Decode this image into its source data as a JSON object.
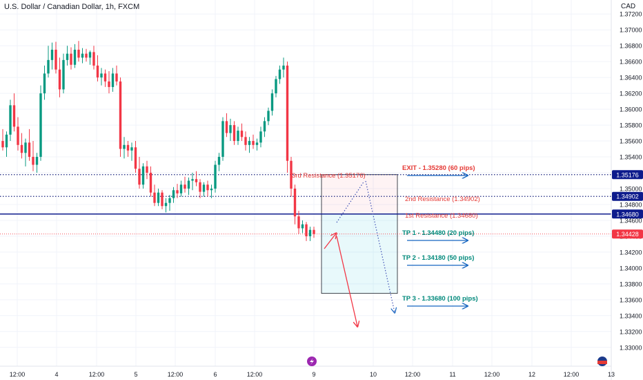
{
  "header": {
    "symbol_title": "U.S. Dollar / Canadian Dollar, 1h, FXCM",
    "currency": "CAD"
  },
  "colors": {
    "up": "#089981",
    "down": "#f23645",
    "resistance_dotted": "#1a237e",
    "resistance_solid": "#0d1b8c",
    "last_price": "#f23645",
    "label_red": "#e53935",
    "label_green": "#00897b",
    "arrow_blue": "#1565c0"
  },
  "chart_data": {
    "type": "candlestick",
    "title": "",
    "ylim": [
      1.3285,
      1.3735
    ],
    "y_ticks": [
      "1.37200",
      "1.37000",
      "1.36800",
      "1.36600",
      "1.36400",
      "1.36200",
      "1.36000",
      "1.35800",
      "1.35600",
      "1.35400",
      "1.35200",
      "1.35000",
      "1.34800",
      "1.34600",
      "1.34400",
      "1.34200",
      "1.34000",
      "1.33800",
      "1.33600",
      "1.33400",
      "1.33200",
      "1.33000"
    ],
    "x_ticks": [
      "12:00",
      "4",
      "12:00",
      "5",
      "12:00",
      "6",
      "12:00",
      "9",
      "10",
      "12:00",
      "11",
      "12:00",
      "12",
      "12:00",
      "13"
    ],
    "horizontal_levels": [
      {
        "value": 1.35176,
        "badge": "1.35176",
        "label": "3rd Resistance (1.35176)",
        "style": "dotted"
      },
      {
        "value": 1.34902,
        "badge": "1.34902",
        "label": "2nd Resistance (1.34902)",
        "style": "dotted"
      },
      {
        "value": 1.3468,
        "badge": "1.34680",
        "label": "1st Resistance (1.34680)",
        "style": "solid"
      }
    ],
    "last_price": {
      "value": 1.34428,
      "badge": "1.34428"
    },
    "targets": [
      {
        "label": "EXIT - 1.35280 (60 pips)",
        "value": 1.3528,
        "kind": "exit"
      },
      {
        "label": "TP 1 - 1.34480 (20 pips)",
        "value": 1.3448,
        "kind": "tp"
      },
      {
        "label": "TP 2 - 1.34180 (50 pips)",
        "value": 1.3418,
        "kind": "tp"
      },
      {
        "label": "TP 3 - 1.33680 (100 pips)",
        "value": 1.3368,
        "kind": "tp"
      }
    ],
    "position": {
      "entry": 1.3468,
      "stop": 1.35176,
      "target": 1.3368
    },
    "candles": [
      [
        1.356,
        1.3575,
        1.3548,
        1.3552
      ],
      [
        1.3552,
        1.3572,
        1.354,
        1.3568
      ],
      [
        1.3568,
        1.3612,
        1.356,
        1.3605
      ],
      [
        1.3605,
        1.362,
        1.3572,
        1.3578
      ],
      [
        1.3578,
        1.359,
        1.3548,
        1.3555
      ],
      [
        1.3555,
        1.357,
        1.3538,
        1.3545
      ],
      [
        1.3545,
        1.3563,
        1.3528,
        1.3558
      ],
      [
        1.3558,
        1.3575,
        1.3535,
        1.354
      ],
      [
        1.354,
        1.356,
        1.3522,
        1.353
      ],
      [
        1.353,
        1.3545,
        1.352,
        1.354
      ],
      [
        1.354,
        1.363,
        1.3535,
        1.362
      ],
      [
        1.362,
        1.3655,
        1.3612,
        1.3645
      ],
      [
        1.3645,
        1.368,
        1.364,
        1.3662
      ],
      [
        1.3662,
        1.3684,
        1.365,
        1.3675
      ],
      [
        1.3675,
        1.3685,
        1.3645,
        1.365
      ],
      [
        1.365,
        1.3665,
        1.3615,
        1.3625
      ],
      [
        1.3625,
        1.367,
        1.362,
        1.3662
      ],
      [
        1.3662,
        1.368,
        1.3655,
        1.367
      ],
      [
        1.367,
        1.3678,
        1.365,
        1.3656
      ],
      [
        1.3656,
        1.3682,
        1.3652,
        1.3675
      ],
      [
        1.3675,
        1.3686,
        1.366,
        1.3665
      ],
      [
        1.3665,
        1.3677,
        1.3658,
        1.367
      ],
      [
        1.367,
        1.3676,
        1.366,
        1.3665
      ],
      [
        1.3665,
        1.3674,
        1.3656,
        1.3672
      ],
      [
        1.3672,
        1.368,
        1.365,
        1.3655
      ],
      [
        1.3655,
        1.3668,
        1.3635,
        1.364
      ],
      [
        1.364,
        1.3652,
        1.363,
        1.3645
      ],
      [
        1.3645,
        1.365,
        1.3628,
        1.3635
      ],
      [
        1.3635,
        1.3648,
        1.362,
        1.3628
      ],
      [
        1.3628,
        1.3652,
        1.3622,
        1.3645
      ],
      [
        1.3645,
        1.3655,
        1.363,
        1.3635
      ],
      [
        1.3635,
        1.364,
        1.354,
        1.355
      ],
      [
        1.355,
        1.3565,
        1.3538,
        1.3555
      ],
      [
        1.3555,
        1.356,
        1.354,
        1.3548
      ],
      [
        1.3548,
        1.3558,
        1.3535,
        1.3552
      ],
      [
        1.3552,
        1.356,
        1.352,
        1.3525
      ],
      [
        1.3525,
        1.354,
        1.35,
        1.3505
      ],
      [
        1.3505,
        1.3532,
        1.35,
        1.3528
      ],
      [
        1.3528,
        1.3535,
        1.3512,
        1.352
      ],
      [
        1.352,
        1.3528,
        1.349,
        1.3495
      ],
      [
        1.3495,
        1.3505,
        1.3478,
        1.3482
      ],
      [
        1.3482,
        1.35,
        1.3478,
        1.3495
      ],
      [
        1.3495,
        1.3498,
        1.3474,
        1.3478
      ],
      [
        1.3478,
        1.3488,
        1.347,
        1.3482
      ],
      [
        1.3482,
        1.3492,
        1.3472,
        1.3488
      ],
      [
        1.3488,
        1.3502,
        1.3482,
        1.3498
      ],
      [
        1.3498,
        1.3506,
        1.3488,
        1.3494
      ],
      [
        1.3494,
        1.351,
        1.349,
        1.3505
      ],
      [
        1.3505,
        1.3515,
        1.3495,
        1.35
      ],
      [
        1.35,
        1.3514,
        1.3492,
        1.351
      ],
      [
        1.351,
        1.352,
        1.3498,
        1.3512
      ],
      [
        1.3512,
        1.3522,
        1.3503,
        1.3508
      ],
      [
        1.3508,
        1.3512,
        1.3488,
        1.3496
      ],
      [
        1.3496,
        1.3508,
        1.349,
        1.3505
      ],
      [
        1.3505,
        1.351,
        1.349,
        1.3498
      ],
      [
        1.3498,
        1.3505,
        1.3488,
        1.35
      ],
      [
        1.35,
        1.3535,
        1.3495,
        1.353
      ],
      [
        1.353,
        1.3545,
        1.3522,
        1.354
      ],
      [
        1.354,
        1.359,
        1.3535,
        1.3585
      ],
      [
        1.3585,
        1.3595,
        1.3565,
        1.357
      ],
      [
        1.357,
        1.3588,
        1.356,
        1.358
      ],
      [
        1.358,
        1.3585,
        1.3555,
        1.356
      ],
      [
        1.356,
        1.3578,
        1.3555,
        1.3573
      ],
      [
        1.3573,
        1.3582,
        1.356,
        1.3565
      ],
      [
        1.3565,
        1.3572,
        1.3548,
        1.3555
      ],
      [
        1.3555,
        1.3565,
        1.3545,
        1.356
      ],
      [
        1.356,
        1.3568,
        1.355,
        1.3555
      ],
      [
        1.3555,
        1.3563,
        1.3548,
        1.3558
      ],
      [
        1.3558,
        1.3578,
        1.3552,
        1.3572
      ],
      [
        1.3572,
        1.359,
        1.3565,
        1.3585
      ],
      [
        1.3585,
        1.3602,
        1.358,
        1.3598
      ],
      [
        1.3598,
        1.3625,
        1.3592,
        1.362
      ],
      [
        1.362,
        1.3642,
        1.3615,
        1.3638
      ],
      [
        1.3638,
        1.3655,
        1.3632,
        1.365
      ],
      [
        1.365,
        1.3665,
        1.364,
        1.3655
      ],
      [
        1.3655,
        1.366,
        1.352,
        1.3535
      ],
      [
        1.3535,
        1.354,
        1.349,
        1.35
      ],
      [
        1.35,
        1.3505,
        1.3455,
        1.3465
      ],
      [
        1.3465,
        1.3472,
        1.3443,
        1.345
      ],
      [
        1.345,
        1.346,
        1.3444,
        1.3455
      ],
      [
        1.3455,
        1.3458,
        1.3434,
        1.344
      ],
      [
        1.344,
        1.3452,
        1.3434,
        1.3448
      ],
      [
        1.3448,
        1.3452,
        1.3438,
        1.3443
      ]
    ]
  }
}
